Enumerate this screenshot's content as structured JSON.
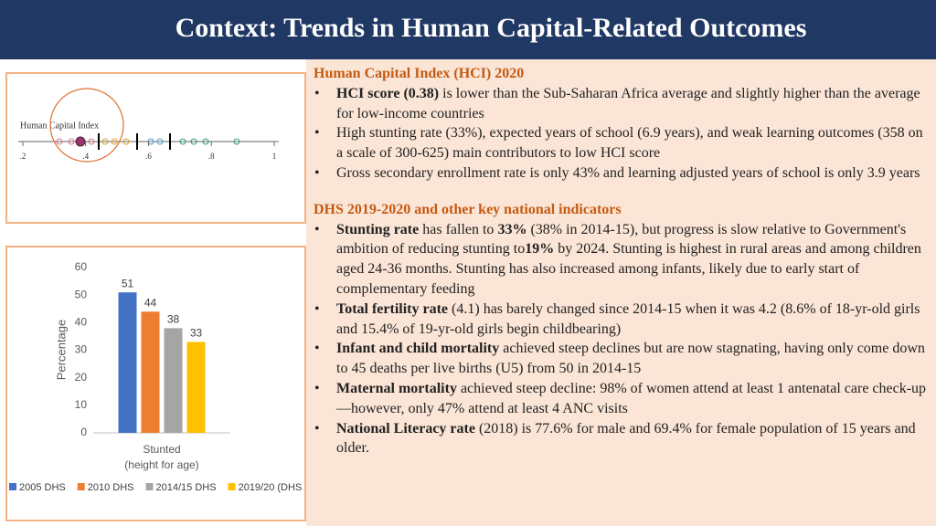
{
  "header": {
    "title": "Context: Trends in Human Capital-Related Outcomes"
  },
  "hci_figure": {
    "label": "Human Capital Index",
    "xlim": [
      0.2,
      1
    ],
    "xticks": [
      {
        "value": 0.2,
        "label": ".2"
      },
      {
        "value": 0.4,
        "label": ".4"
      },
      {
        "value": 0.6,
        "label": ".6"
      },
      {
        "value": 0.8,
        "label": ".8"
      },
      1
    ]
  },
  "chart_data": {
    "type": "bar",
    "categories": [
      [
        "Stunted",
        "(height for age)"
      ]
    ],
    "ylabel": "Percentage",
    "ylim": [
      0,
      60
    ],
    "yticks": [
      0,
      10,
      20,
      30,
      40,
      50,
      60
    ],
    "series": [
      {
        "name": "2005 DHS",
        "color": "#4472c4",
        "values": [
          51
        ]
      },
      {
        "name": "2010 DHS",
        "color": "#ed7d31",
        "values": [
          44
        ]
      },
      {
        "name": "2014/15 DHS",
        "color": "#a5a5a5",
        "values": [
          38
        ]
      },
      {
        "name": "2019/20 (DHS",
        "color": "#ffc000",
        "values": [
          33
        ]
      }
    ]
  },
  "text": {
    "sections": [
      {
        "heading": "Human Capital Index (HCI) 2020",
        "bullets": [
          [
            {
              "t": "HCI score (0.38)",
              "b": true
            },
            {
              "t": " is lower than the Sub-Saharan Africa average and slightly higher than the average for low-income countries"
            }
          ],
          [
            {
              "t": "High stunting rate (33%), expected years of school (6.9 years), and weak learning outcomes (358 on a scale of 300-625) main contributors to low HCI score"
            }
          ],
          [
            {
              "t": "Gross secondary enrollment rate is only 43% and learning adjusted years of school is only 3.9 years"
            }
          ]
        ]
      },
      {
        "heading": "DHS 2019-2020 and other key national indicators",
        "bullets": [
          [
            {
              "t": "Stunting rate",
              "b": true
            },
            {
              "t": " has fallen to "
            },
            {
              "t": "33%",
              "b": true
            },
            {
              "t": " (38% in 2014-15), but progress is slow relative to Government's ambition of  reducing stunting to"
            },
            {
              "t": "19%",
              "b": true
            },
            {
              "t": " by 2024. Stunting is highest in rural areas and among children aged 24-36 months. Stunting has also increased among infants, likely due to early start of complementary feeding"
            }
          ],
          [
            {
              "t": "Total fertility rate",
              "b": true
            },
            {
              "t": " (4.1) has barely changed since 2014-15 when it was 4.2 (8.6% of 18-yr-old girls and 15.4% of 19-yr-old girls begin childbearing)"
            }
          ],
          [
            {
              "t": "Infant and child mortality",
              "b": true
            },
            {
              "t": " achieved steep declines but are now stagnating, having only come down to 45 deaths per live births (U5) from 50 in 2014-15"
            }
          ],
          [
            {
              "t": "Maternal mortality",
              "b": true
            },
            {
              "t": " achieved steep decline: 98% of women attend at least 1 antenatal care check-up—however, only 47% attend at least 4 ANC visits"
            }
          ],
          [
            {
              "t": "National Literacy rate",
              "b": true
            },
            {
              "t": " (2018) is 77.6% for male and 69.4% for female population of 15 years and older."
            }
          ]
        ]
      }
    ]
  }
}
